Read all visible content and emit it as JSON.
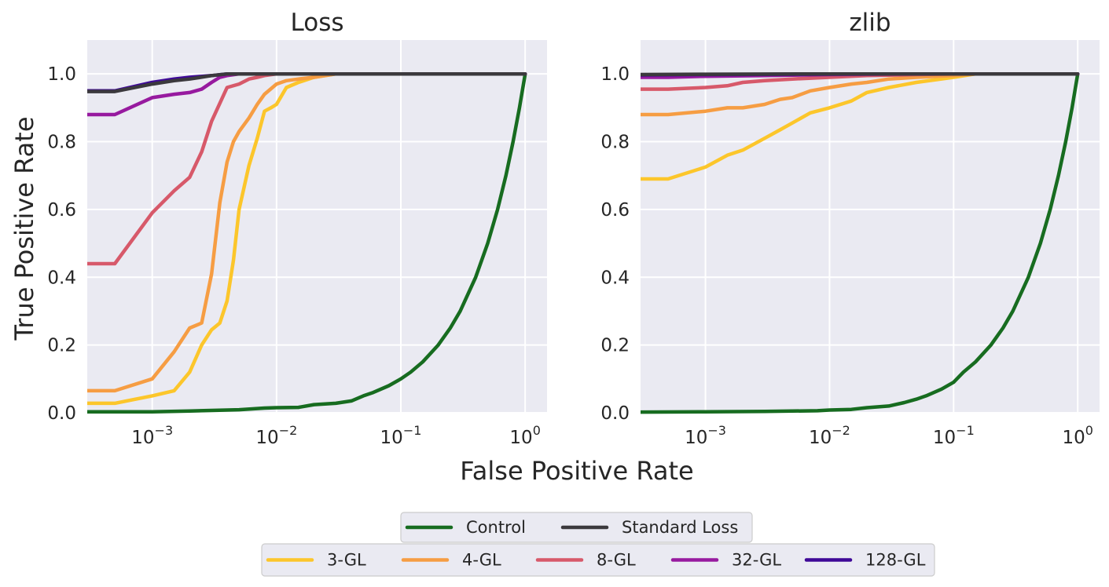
{
  "chart_data": {
    "type": "line",
    "xlabel": "False Positive Rate",
    "ylabel": "True Positive Rate",
    "xscale": "log",
    "xlim": [
      0.0003,
      1.5
    ],
    "ylim": [
      0,
      1.1
    ],
    "xticks": [
      0.001,
      0.01,
      0.1,
      1
    ],
    "xtick_labels": [
      {
        "base": "10",
        "exp": "−3"
      },
      {
        "base": "10",
        "exp": "−2"
      },
      {
        "base": "10",
        "exp": "−1"
      },
      {
        "base": "10",
        "exp": "0"
      }
    ],
    "yticks": [
      0.0,
      0.2,
      0.4,
      0.6,
      0.8,
      1.0
    ],
    "ytick_labels": [
      "0.0",
      "0.2",
      "0.4",
      "0.6",
      "0.8",
      "1.0"
    ],
    "grid": true,
    "legend_placement": "bottom-center",
    "legend_rows": [
      [
        "Control",
        "Standard Loss"
      ],
      [
        "3-GL",
        "4-GL",
        "8-GL",
        "32-GL",
        "128-GL"
      ]
    ],
    "series_colors": {
      "Control": "#176c20",
      "Standard Loss": "#3b393d",
      "3-GL": "#fcc62b",
      "4-GL": "#f69d43",
      "8-GL": "#d7596a",
      "32-GL": "#971a9f",
      "128-GL": "#3e0897"
    },
    "panels": [
      {
        "title": "Loss",
        "series": [
          {
            "name": "Control",
            "x": [
              0.0003,
              0.001,
              0.002,
              0.003,
              0.005,
              0.008,
              0.01,
              0.015,
              0.02,
              0.03,
              0.04,
              0.05,
              0.06,
              0.08,
              0.1,
              0.12,
              0.15,
              0.2,
              0.25,
              0.3,
              0.4,
              0.5,
              0.6,
              0.7,
              0.8,
              0.9,
              1.0
            ],
            "y": [
              0.003,
              0.003,
              0.005,
              0.007,
              0.009,
              0.014,
              0.015,
              0.016,
              0.024,
              0.028,
              0.035,
              0.05,
              0.06,
              0.08,
              0.1,
              0.12,
              0.15,
              0.2,
              0.25,
              0.3,
              0.4,
              0.5,
              0.6,
              0.7,
              0.8,
              0.9,
              1.0
            ]
          },
          {
            "name": "3-GL",
            "x": [
              0.0003,
              0.0005,
              0.001,
              0.0015,
              0.002,
              0.0025,
              0.003,
              0.0035,
              0.004,
              0.0045,
              0.005,
              0.006,
              0.007,
              0.008,
              0.009,
              0.01,
              0.012,
              0.015,
              0.02,
              0.03,
              1.0
            ],
            "y": [
              0.028,
              0.028,
              0.05,
              0.065,
              0.12,
              0.2,
              0.245,
              0.265,
              0.33,
              0.45,
              0.6,
              0.73,
              0.81,
              0.89,
              0.9,
              0.91,
              0.96,
              0.975,
              0.99,
              1.0,
              1.0
            ]
          },
          {
            "name": "4-GL",
            "x": [
              0.0003,
              0.0005,
              0.001,
              0.0015,
              0.002,
              0.0025,
              0.003,
              0.0035,
              0.004,
              0.0045,
              0.005,
              0.006,
              0.007,
              0.008,
              0.01,
              0.012,
              0.015,
              0.02,
              0.03,
              1.0
            ],
            "y": [
              0.065,
              0.065,
              0.1,
              0.18,
              0.25,
              0.265,
              0.41,
              0.62,
              0.74,
              0.8,
              0.83,
              0.87,
              0.91,
              0.94,
              0.97,
              0.98,
              0.985,
              0.99,
              1.0,
              1.0
            ]
          },
          {
            "name": "8-GL",
            "x": [
              0.0003,
              0.0005,
              0.001,
              0.0015,
              0.002,
              0.0025,
              0.003,
              0.004,
              0.005,
              0.006,
              0.007,
              0.008,
              0.01,
              0.02,
              1.0
            ],
            "y": [
              0.44,
              0.44,
              0.59,
              0.655,
              0.695,
              0.77,
              0.86,
              0.96,
              0.97,
              0.985,
              0.99,
              0.995,
              1.0,
              1.0,
              1.0
            ]
          },
          {
            "name": "32-GL",
            "x": [
              0.0003,
              0.0005,
              0.001,
              0.0015,
              0.002,
              0.0025,
              0.003,
              0.0035,
              0.004,
              0.005,
              0.006,
              1.0
            ],
            "y": [
              0.88,
              0.88,
              0.93,
              0.94,
              0.945,
              0.955,
              0.975,
              0.99,
              0.995,
              1.0,
              1.0,
              1.0
            ]
          },
          {
            "name": "128-GL",
            "x": [
              0.0003,
              0.0005,
              0.001,
              0.0015,
              0.002,
              0.003,
              0.004,
              1.0
            ],
            "y": [
              0.95,
              0.95,
              0.975,
              0.985,
              0.99,
              0.995,
              1.0,
              1.0
            ]
          },
          {
            "name": "Standard Loss",
            "x": [
              0.0003,
              0.0005,
              0.001,
              0.0015,
              0.002,
              0.003,
              0.004,
              0.005,
              1.0
            ],
            "y": [
              0.948,
              0.948,
              0.97,
              0.98,
              0.985,
              0.995,
              1.0,
              1.0,
              1.0
            ]
          }
        ]
      },
      {
        "title": "zlib",
        "series": [
          {
            "name": "Control",
            "x": [
              0.0003,
              0.001,
              0.003,
              0.005,
              0.008,
              0.01,
              0.015,
              0.02,
              0.03,
              0.04,
              0.05,
              0.06,
              0.08,
              0.1,
              0.12,
              0.15,
              0.2,
              0.25,
              0.3,
              0.4,
              0.5,
              0.6,
              0.7,
              0.8,
              0.9,
              1.0
            ],
            "y": [
              0.002,
              0.003,
              0.004,
              0.005,
              0.006,
              0.008,
              0.01,
              0.015,
              0.02,
              0.03,
              0.04,
              0.05,
              0.07,
              0.09,
              0.12,
              0.15,
              0.2,
              0.25,
              0.3,
              0.4,
              0.5,
              0.6,
              0.7,
              0.8,
              0.9,
              1.0
            ]
          },
          {
            "name": "3-GL",
            "x": [
              0.0003,
              0.0005,
              0.001,
              0.0015,
              0.002,
              0.003,
              0.004,
              0.005,
              0.007,
              0.01,
              0.015,
              0.02,
              0.03,
              0.05,
              0.1,
              0.15,
              1.0
            ],
            "y": [
              0.69,
              0.69,
              0.725,
              0.76,
              0.775,
              0.81,
              0.835,
              0.855,
              0.885,
              0.9,
              0.92,
              0.945,
              0.96,
              0.975,
              0.99,
              1.0,
              1.0
            ]
          },
          {
            "name": "4-GL",
            "x": [
              0.0003,
              0.0005,
              0.001,
              0.0015,
              0.002,
              0.003,
              0.004,
              0.005,
              0.007,
              0.01,
              0.015,
              0.02,
              0.03,
              0.05,
              0.1,
              0.15,
              1.0
            ],
            "y": [
              0.88,
              0.88,
              0.89,
              0.9,
              0.9,
              0.91,
              0.925,
              0.93,
              0.95,
              0.96,
              0.97,
              0.975,
              0.985,
              0.99,
              0.995,
              1.0,
              1.0
            ]
          },
          {
            "name": "8-GL",
            "x": [
              0.0003,
              0.0005,
              0.001,
              0.0015,
              0.002,
              0.003,
              0.005,
              0.01,
              0.02,
              0.05,
              0.1,
              1.0
            ],
            "y": [
              0.955,
              0.955,
              0.96,
              0.965,
              0.975,
              0.98,
              0.985,
              0.99,
              0.995,
              0.998,
              1.0,
              1.0
            ]
          },
          {
            "name": "32-GL",
            "x": [
              0.0003,
              0.0005,
              0.001,
              0.003,
              0.01,
              0.05,
              1.0
            ],
            "y": [
              0.99,
              0.99,
              0.993,
              0.995,
              0.998,
              1.0,
              1.0
            ]
          },
          {
            "name": "128-GL",
            "x": [
              0.0003,
              0.001,
              0.005,
              0.02,
              1.0
            ],
            "y": [
              0.997,
              0.998,
              0.999,
              1.0,
              1.0
            ]
          },
          {
            "name": "Standard Loss",
            "x": [
              0.0003,
              0.001,
              0.01,
              1.0
            ],
            "y": [
              0.998,
              0.999,
              1.0,
              1.0
            ]
          }
        ]
      }
    ]
  }
}
